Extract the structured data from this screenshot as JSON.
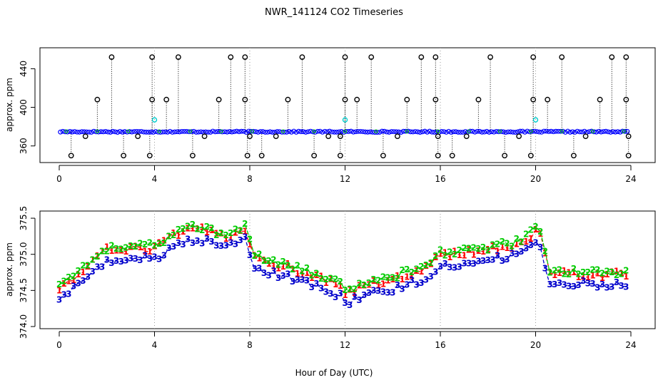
{
  "title": "NWR_141124  CO2 Timeseries",
  "xlabel": "Hour of Day (UTC)",
  "colors": {
    "raw": "#000000",
    "fit": "#0000ff",
    "flag": "#00cccc",
    "s1": "#ff0000",
    "s2": "#00cc00",
    "s3": "#0000cc"
  },
  "chart_data": [
    {
      "type": "scatter",
      "ylabel": "approx. ppm",
      "xlim": [
        0,
        24
      ],
      "ylim": [
        345,
        458
      ],
      "xticks": [
        "0",
        "4",
        "8",
        "12",
        "16",
        "20",
        "24"
      ],
      "yticks": [
        "360",
        "400",
        "440"
      ],
      "baseline_ppm": 374.7,
      "high_level_ppm": 452,
      "mid_level_ppm": 408,
      "low_level_ppm": 350,
      "spike_high_hours": [
        2.2,
        3.9,
        5.0,
        7.2,
        7.8,
        10.2,
        12.0,
        13.1,
        15.2,
        15.8,
        18.1,
        19.9,
        21.1,
        23.2,
        23.8
      ],
      "spike_mid_hours": [
        1.6,
        3.9,
        4.5,
        6.7,
        7.8,
        9.6,
        12.0,
        12.5,
        14.6,
        15.8,
        17.6,
        19.9,
        20.5,
        22.7,
        23.8
      ],
      "spike_low_hours": [
        0.5,
        2.7,
        3.8,
        5.6,
        7.9,
        8.5,
        10.7,
        11.8,
        13.6,
        15.9,
        16.5,
        18.7,
        19.8,
        21.6,
        23.9
      ],
      "dip_hours": [
        1.1,
        3.3,
        6.1,
        8.0,
        9.1,
        11.3,
        11.8,
        14.2,
        15.9,
        17.1,
        19.3,
        22.1,
        23.9
      ],
      "flag_hours": [
        4.0,
        12.0,
        20.0
      ],
      "flag_ppm": 387
    },
    {
      "type": "line",
      "ylabel": "approx. ppm",
      "xlim": [
        0,
        24
      ],
      "ylim": [
        374.0,
        375.55
      ],
      "xticks": [
        "0",
        "4",
        "8",
        "12",
        "16",
        "20",
        "24"
      ],
      "yticks": [
        "374.0",
        "374.5",
        "375.0",
        "375.5"
      ],
      "series": [
        {
          "name": "1",
          "color": "#ff0000",
          "offset": 0.0
        },
        {
          "name": "2",
          "color": "#00cc00",
          "offset": 0.04
        },
        {
          "name": "3",
          "color": "#0000cc",
          "offset": -0.14
        }
      ],
      "x": [
        0,
        2,
        4,
        4.8,
        5.8,
        7,
        7.8,
        8.2,
        10,
        11.9,
        12,
        13,
        14,
        15.5,
        16,
        18,
        19.5,
        20.1,
        20.6,
        22,
        23.8
      ],
      "y": [
        374.52,
        375.05,
        375.08,
        375.25,
        375.35,
        375.22,
        375.35,
        374.95,
        374.78,
        374.55,
        374.45,
        374.58,
        374.65,
        374.82,
        374.98,
        375.05,
        375.15,
        375.38,
        374.72,
        374.72,
        374.72
      ]
    }
  ]
}
